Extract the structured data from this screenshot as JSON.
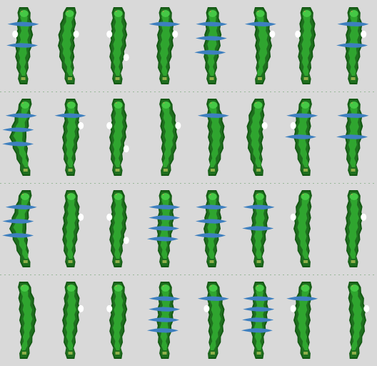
{
  "sheet": {
    "rows": 4,
    "cols": 8,
    "background": "#d9d9d9",
    "colors": {
      "rough": "#1f6f1f",
      "rough_dark": "#125812",
      "fairway": "#2fa52f",
      "green": "#45c845",
      "fringe": "#8fb04a",
      "water": "#3d7fbf",
      "bunker": "#ffffff"
    }
  },
  "holes": [
    {
      "id": "hole-1",
      "shape": "straight",
      "water_bands": 2,
      "bunkers": 1
    },
    {
      "id": "hole-2",
      "shape": "curve-left",
      "water_bands": 0,
      "bunkers": 1
    },
    {
      "id": "hole-3",
      "shape": "straight",
      "water_bands": 0,
      "bunkers": 2
    },
    {
      "id": "hole-4",
      "shape": "straight",
      "water_bands": 1,
      "bunkers": 1
    },
    {
      "id": "hole-5",
      "shape": "straight",
      "water_bands": 3,
      "bunkers": 0
    },
    {
      "id": "hole-6",
      "shape": "curve-right",
      "water_bands": 1,
      "bunkers": 1
    },
    {
      "id": "hole-7",
      "shape": "straight",
      "water_bands": 0,
      "bunkers": 1
    },
    {
      "id": "hole-8",
      "shape": "straight",
      "water_bands": 2,
      "bunkers": 1
    },
    {
      "id": "hole-9",
      "shape": "dogleg-left",
      "water_bands": 3,
      "bunkers": 0
    },
    {
      "id": "hole-10",
      "shape": "straight",
      "water_bands": 1,
      "bunkers": 1
    },
    {
      "id": "hole-11",
      "shape": "straight",
      "water_bands": 0,
      "bunkers": 2
    },
    {
      "id": "hole-12",
      "shape": "curve-right",
      "water_bands": 0,
      "bunkers": 1
    },
    {
      "id": "hole-13",
      "shape": "curve-right",
      "water_bands": 1,
      "bunkers": 0
    },
    {
      "id": "hole-14",
      "shape": "curve-left",
      "water_bands": 0,
      "bunkers": 1
    },
    {
      "id": "hole-15",
      "shape": "curve-left",
      "water_bands": 2,
      "bunkers": 1
    },
    {
      "id": "hole-16",
      "shape": "straight",
      "water_bands": 2,
      "bunkers": 0
    },
    {
      "id": "hole-17",
      "shape": "dogleg-left",
      "water_bands": 3,
      "bunkers": 0
    },
    {
      "id": "hole-18",
      "shape": "straight",
      "water_bands": 0,
      "bunkers": 1
    },
    {
      "id": "hole-19",
      "shape": "straight",
      "water_bands": 0,
      "bunkers": 2
    },
    {
      "id": "hole-20",
      "shape": "straight",
      "water_bands": 4,
      "bunkers": 0
    },
    {
      "id": "hole-21",
      "shape": "straight",
      "water_bands": 3,
      "bunkers": 0
    },
    {
      "id": "hole-22",
      "shape": "straight",
      "water_bands": 2,
      "bunkers": 0
    },
    {
      "id": "hole-23",
      "shape": "curve-left",
      "water_bands": 0,
      "bunkers": 1
    },
    {
      "id": "hole-24",
      "shape": "straight",
      "water_bands": 0,
      "bunkers": 1
    },
    {
      "id": "hole-25",
      "shape": "curve-right",
      "water_bands": 0,
      "bunkers": 0
    },
    {
      "id": "hole-26",
      "shape": "straight",
      "water_bands": 0,
      "bunkers": 1
    },
    {
      "id": "hole-27",
      "shape": "straight",
      "water_bands": 0,
      "bunkers": 1
    },
    {
      "id": "hole-28",
      "shape": "straight",
      "water_bands": 4,
      "bunkers": 0
    },
    {
      "id": "hole-29",
      "shape": "curve-right",
      "water_bands": 1,
      "bunkers": 1
    },
    {
      "id": "hole-30",
      "shape": "straight",
      "water_bands": 4,
      "bunkers": 0
    },
    {
      "id": "hole-31",
      "shape": "curve-left",
      "water_bands": 1,
      "bunkers": 1
    },
    {
      "id": "hole-32",
      "shape": "curve-right",
      "water_bands": 0,
      "bunkers": 1
    }
  ]
}
